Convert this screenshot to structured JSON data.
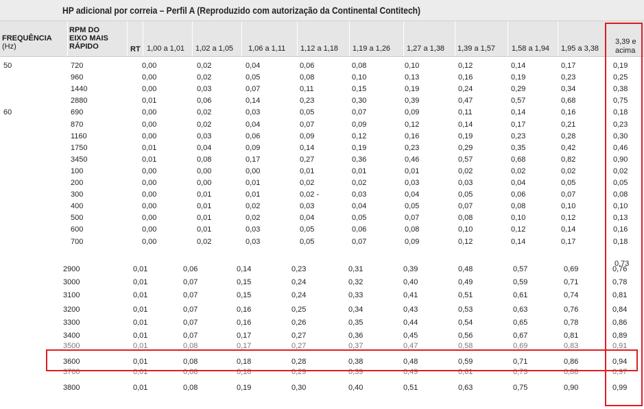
{
  "title": "HP adicional por correia – Perfil A (Reproduzido com autorização da Continental Contitech)",
  "header": {
    "freq_line1": "FREQUÊNCIA",
    "freq_line2": "(Hz)",
    "rpm_line1": "RPM DO",
    "rpm_line2": "EIXO MAIS",
    "rpm_line3": "RÁPIDO",
    "rt": "RT",
    "ranges": [
      "1,00 a 1,01",
      "1,02 a 1,05",
      "1,06 a 1,11",
      "1,12 a 1,18",
      "1,19 a 1,26",
      "1,27 a 1,38",
      "1,39 a 1,57",
      "1,58 a 1,94",
      "1,95 a 3,38"
    ],
    "last_line1": "3,39 e",
    "last_line2": "acima"
  },
  "block1": {
    "rows": [
      {
        "freq": "50",
        "rpm": "720",
        "values": [
          "0,00",
          "0,02",
          "0,04",
          "0,06",
          "0,08",
          "0,10",
          "0,12",
          "0,14",
          "0,17",
          "0,19"
        ]
      },
      {
        "freq": "",
        "rpm": "960",
        "values": [
          "0,00",
          "0,02",
          "0,05",
          "0,08",
          "0,10",
          "0,13",
          "0,16",
          "0,19",
          "0,23",
          "0,25"
        ]
      },
      {
        "freq": "",
        "rpm": "1440",
        "values": [
          "0,00",
          "0,03",
          "0,07",
          "0,11",
          "0,15",
          "0,19",
          "0,24",
          "0,29",
          "0,34",
          "0,38"
        ]
      },
      {
        "freq": "",
        "rpm": "2880",
        "values": [
          "0,01",
          "0,06",
          "0,14",
          "0,23",
          "0,30",
          "0,39",
          "0,47",
          "0,57",
          "0,68",
          "0,75"
        ]
      },
      {
        "freq": "60",
        "rpm": "690",
        "values": [
          "0,00",
          "0,02",
          "0,03",
          "0,05",
          "0,07",
          "0,09",
          "0,11",
          "0,14",
          "0,16",
          "0,18"
        ]
      },
      {
        "freq": "",
        "rpm": "870",
        "values": [
          "0,00",
          "0,02",
          "0,04",
          "0,07",
          "0,09",
          "0,12",
          "0,14",
          "0,17",
          "0,21",
          "0,23"
        ]
      },
      {
        "freq": "",
        "rpm": "1160",
        "values": [
          "0,00",
          "0,03",
          "0,06",
          "0,09",
          "0,12",
          "0,16",
          "0,19",
          "0,23",
          "0,28",
          "0,30"
        ]
      },
      {
        "freq": "",
        "rpm": "1750",
        "values": [
          "0,01",
          "0,04",
          "0,09",
          "0,14",
          "0,19",
          "0,23",
          "0,29",
          "0,35",
          "0,42",
          "0,46"
        ]
      },
      {
        "freq": "",
        "rpm": "3450",
        "values": [
          "0,01",
          "0,08",
          "0,17",
          "0,27",
          "0,36",
          "0,46",
          "0,57",
          "0,68",
          "0,82",
          "0,90"
        ]
      },
      {
        "freq": "",
        "rpm": "100",
        "values": [
          "0,00",
          "0,00",
          "0,00",
          "0,01",
          "0,01",
          "0,01",
          "0,02",
          "0,02",
          "0,02",
          "0,02"
        ]
      },
      {
        "freq": "",
        "rpm": "200",
        "values": [
          "0,00",
          "0,00",
          "0,01",
          "0,02",
          "0,02",
          "0,03",
          "0,03",
          "0,04",
          "0,05",
          "0,05"
        ]
      },
      {
        "freq": "",
        "rpm": "300",
        "values": [
          "0,00",
          "0,01",
          "0,01",
          "0,02 -",
          "0,03",
          "0,04",
          "0,05",
          "0,06",
          "0,07",
          "0,08"
        ]
      },
      {
        "freq": "",
        "rpm": "400",
        "values": [
          "0,00",
          "0,01",
          "0,02",
          "0,03",
          "0,04",
          "0,05",
          "0,07",
          "0,08",
          "0,10",
          "0,10"
        ]
      },
      {
        "freq": "",
        "rpm": "500",
        "values": [
          "0,00",
          "0,01",
          "0,02",
          "0,04",
          "0,05",
          "0,07",
          "0,08",
          "0,10",
          "0,12",
          "0,13"
        ]
      },
      {
        "freq": "",
        "rpm": "600",
        "values": [
          "0,00",
          "0,01",
          "0,03",
          "0,05",
          "0,06",
          "0,08",
          "0,10",
          "0,12",
          "0,14",
          "0,16"
        ]
      },
      {
        "freq": "",
        "rpm": "700",
        "values": [
          "0,00",
          "0,02",
          "0,03",
          "0,05",
          "0,07",
          "0,09",
          "0,12",
          "0,14",
          "0,17",
          "0,18"
        ]
      }
    ]
  },
  "block2": {
    "rows": [
      {
        "rpm": "2900",
        "values": [
          "0,01",
          "0,06",
          "0,14",
          "0,23",
          "0,31",
          "0,39",
          "0,48",
          "0,57",
          "0,69",
          "0,76"
        ]
      },
      {
        "rpm": "3000",
        "values": [
          "0,01",
          "0,07",
          "0,15",
          "0,24",
          "0,32",
          "0,40",
          "0,49",
          "0,59",
          "0,71",
          "0,78"
        ]
      },
      {
        "rpm": "3100",
        "values": [
          "0,01",
          "0,07",
          "0,15",
          "0,24",
          "0,33",
          "0,41",
          "0,51",
          "0,61",
          "0,74",
          "0,81"
        ]
      },
      {
        "rpm": "3200",
        "values": [
          "0,01",
          "0,07",
          "0,16",
          "0,25",
          "0,34",
          "0,43",
          "0,53",
          "0,63",
          "0,76",
          "0,84"
        ]
      },
      {
        "rpm": "3300",
        "values": [
          "0,01",
          "0,07",
          "0,16",
          "0,26",
          "0,35",
          "0,44",
          "0,54",
          "0,65",
          "0,78",
          "0,86"
        ]
      },
      {
        "rpm": "3400",
        "values": [
          "0,01",
          "0,07",
          "0,17",
          "0,27",
          "0,36",
          "0,45",
          "0,56",
          "0,67",
          "0,81",
          "0,89"
        ]
      },
      {
        "rpm": "3600",
        "values": [
          "0,01",
          "0,08",
          "0,18",
          "0,28",
          "0,38",
          "0,48",
          "0,59",
          "0,71",
          "0,86",
          "0,94"
        ]
      },
      {
        "rpm": "3800",
        "values": [
          "0,01",
          "0,08",
          "0,19",
          "0,30",
          "0,40",
          "0,51",
          "0,63",
          "0,75",
          "0,90",
          "0,99"
        ]
      }
    ]
  },
  "partial_top": {
    "after_700": [
      "0,73"
    ],
    "after_3400": [
      "3500",
      "0,01",
      "0,08",
      "0,17",
      "0,27",
      "0,37",
      "0,47",
      "0,58",
      "0,69",
      "0,83",
      "0,91"
    ],
    "after_3600": [
      "3700",
      "0,01",
      "0,08",
      "0,18",
      "0,29",
      "0,39",
      "0,49",
      "0,61",
      "0,73",
      "0,88",
      "0,97"
    ]
  },
  "colors": {
    "highlight": "#e01b24",
    "header_bg": "#e6e6e6"
  }
}
